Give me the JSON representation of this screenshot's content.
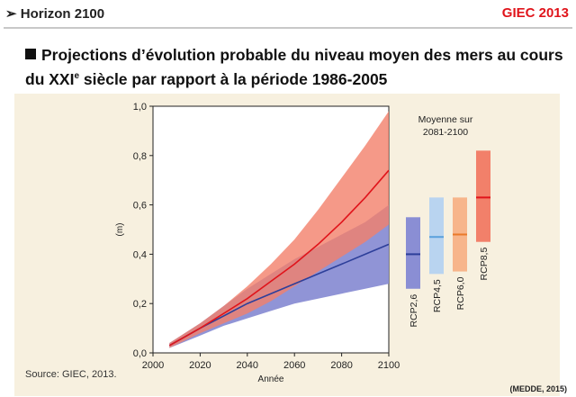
{
  "header": {
    "left_marker": "➢",
    "left_text": "Horizon 2100",
    "right_text": "GIEC 2013",
    "right_color": "#e0141b"
  },
  "heading": {
    "line1": "Projections d’évolution probable du niveau moyen des mers au cours",
    "line2_pre": "du XXI",
    "line2_sup": "e",
    "line2_post": " siècle par rapport à la période 1986-2005"
  },
  "caption": "Source: GIEC, 2013.",
  "footer": "(MEDDE, 2015)",
  "chart_data": {
    "type": "area",
    "xlabel": "Année",
    "ylabel": "(m)",
    "xlim": [
      2000,
      2100
    ],
    "ylim": [
      0.0,
      1.0
    ],
    "x_ticks": [
      "2000",
      "2020",
      "2040",
      "2060",
      "2080",
      "2100"
    ],
    "y_ticks": [
      "0,0",
      "0,2",
      "0,4",
      "0,6",
      "0,8",
      "1,0"
    ],
    "grid": false,
    "x": [
      2007,
      2020,
      2030,
      2040,
      2050,
      2060,
      2070,
      2080,
      2090,
      2100
    ],
    "series": [
      {
        "name": "RCP2,6",
        "line_color": "#2d3f9a",
        "band_color": "#8a8ed4",
        "mean": [
          0.03,
          0.1,
          0.15,
          0.2,
          0.24,
          0.28,
          0.32,
          0.36,
          0.4,
          0.44
        ],
        "low": [
          0.02,
          0.07,
          0.11,
          0.14,
          0.17,
          0.2,
          0.22,
          0.24,
          0.26,
          0.28
        ],
        "high": [
          0.04,
          0.12,
          0.19,
          0.26,
          0.32,
          0.38,
          0.43,
          0.48,
          0.53,
          0.6
        ]
      },
      {
        "name": "RCP8,5",
        "line_color": "#e0141b",
        "band_color": "#f2806a",
        "mean": [
          0.03,
          0.1,
          0.16,
          0.22,
          0.29,
          0.36,
          0.44,
          0.53,
          0.63,
          0.74
        ],
        "low": [
          0.02,
          0.08,
          0.12,
          0.16,
          0.21,
          0.27,
          0.33,
          0.39,
          0.45,
          0.52
        ],
        "high": [
          0.04,
          0.12,
          0.19,
          0.27,
          0.36,
          0.46,
          0.58,
          0.71,
          0.84,
          0.98
        ]
      }
    ],
    "side_panel": {
      "title_line1": "Moyenne sur",
      "title_line2": "2081-2100",
      "bars": [
        {
          "name": "RCP2,6",
          "low": 0.26,
          "high": 0.55,
          "mean": 0.4,
          "fill": "#8a8ed4",
          "line": "#2d3f9a"
        },
        {
          "name": "RCP4,5",
          "low": 0.32,
          "high": 0.63,
          "mean": 0.47,
          "fill": "#b9d4f0",
          "line": "#5aa0dc"
        },
        {
          "name": "RCP6,0",
          "low": 0.33,
          "high": 0.63,
          "mean": 0.48,
          "fill": "#f7b58b",
          "line": "#ea7a2a"
        },
        {
          "name": "RCP8,5",
          "low": 0.45,
          "high": 0.82,
          "mean": 0.63,
          "fill": "#f2806a",
          "line": "#e0141b"
        }
      ]
    }
  }
}
